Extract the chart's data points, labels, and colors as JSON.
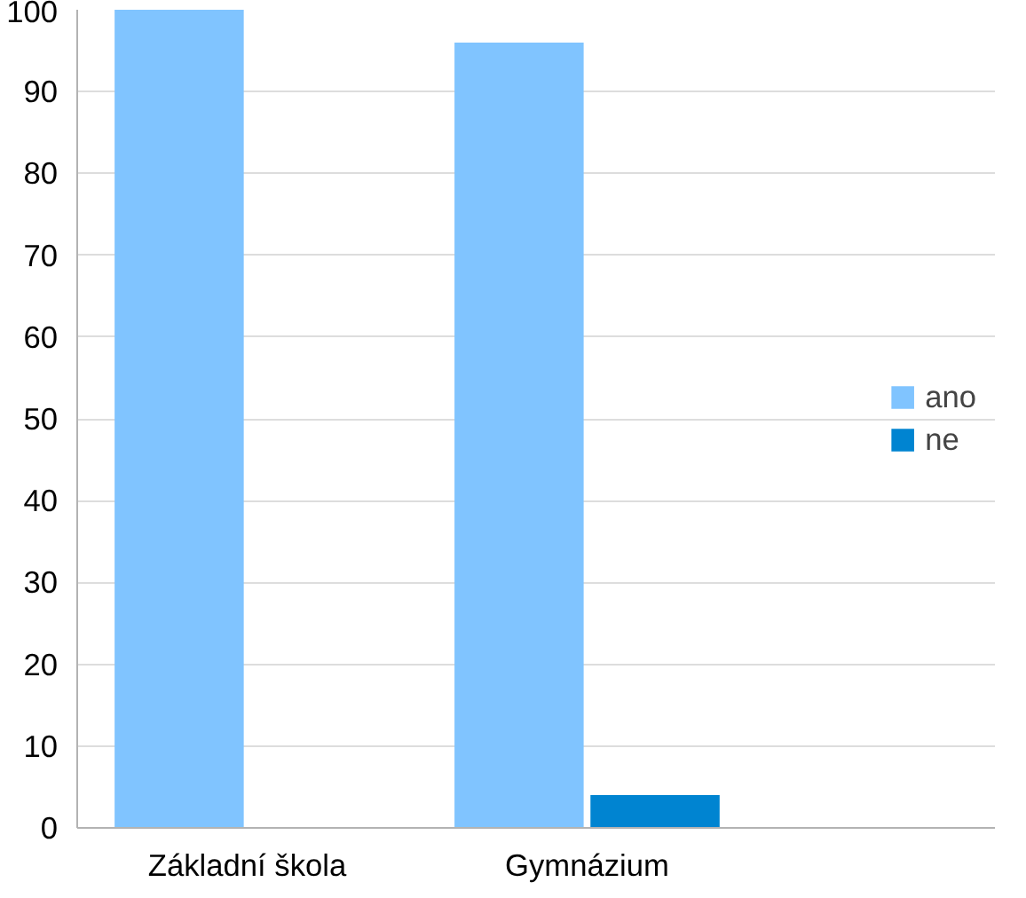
{
  "chart_data": {
    "type": "bar",
    "categories": [
      "Základní škola",
      "Gymnázium"
    ],
    "series": [
      {
        "name": "ano",
        "color": "#80c4ff",
        "values": [
          100,
          96
        ]
      },
      {
        "name": "ne",
        "color": "#0084d1",
        "values": [
          0,
          4
        ]
      }
    ],
    "ylim": [
      0,
      100
    ],
    "yticks": [
      0,
      10,
      20,
      30,
      40,
      50,
      60,
      70,
      80,
      90,
      100
    ],
    "grid": "y",
    "legend": "right"
  }
}
